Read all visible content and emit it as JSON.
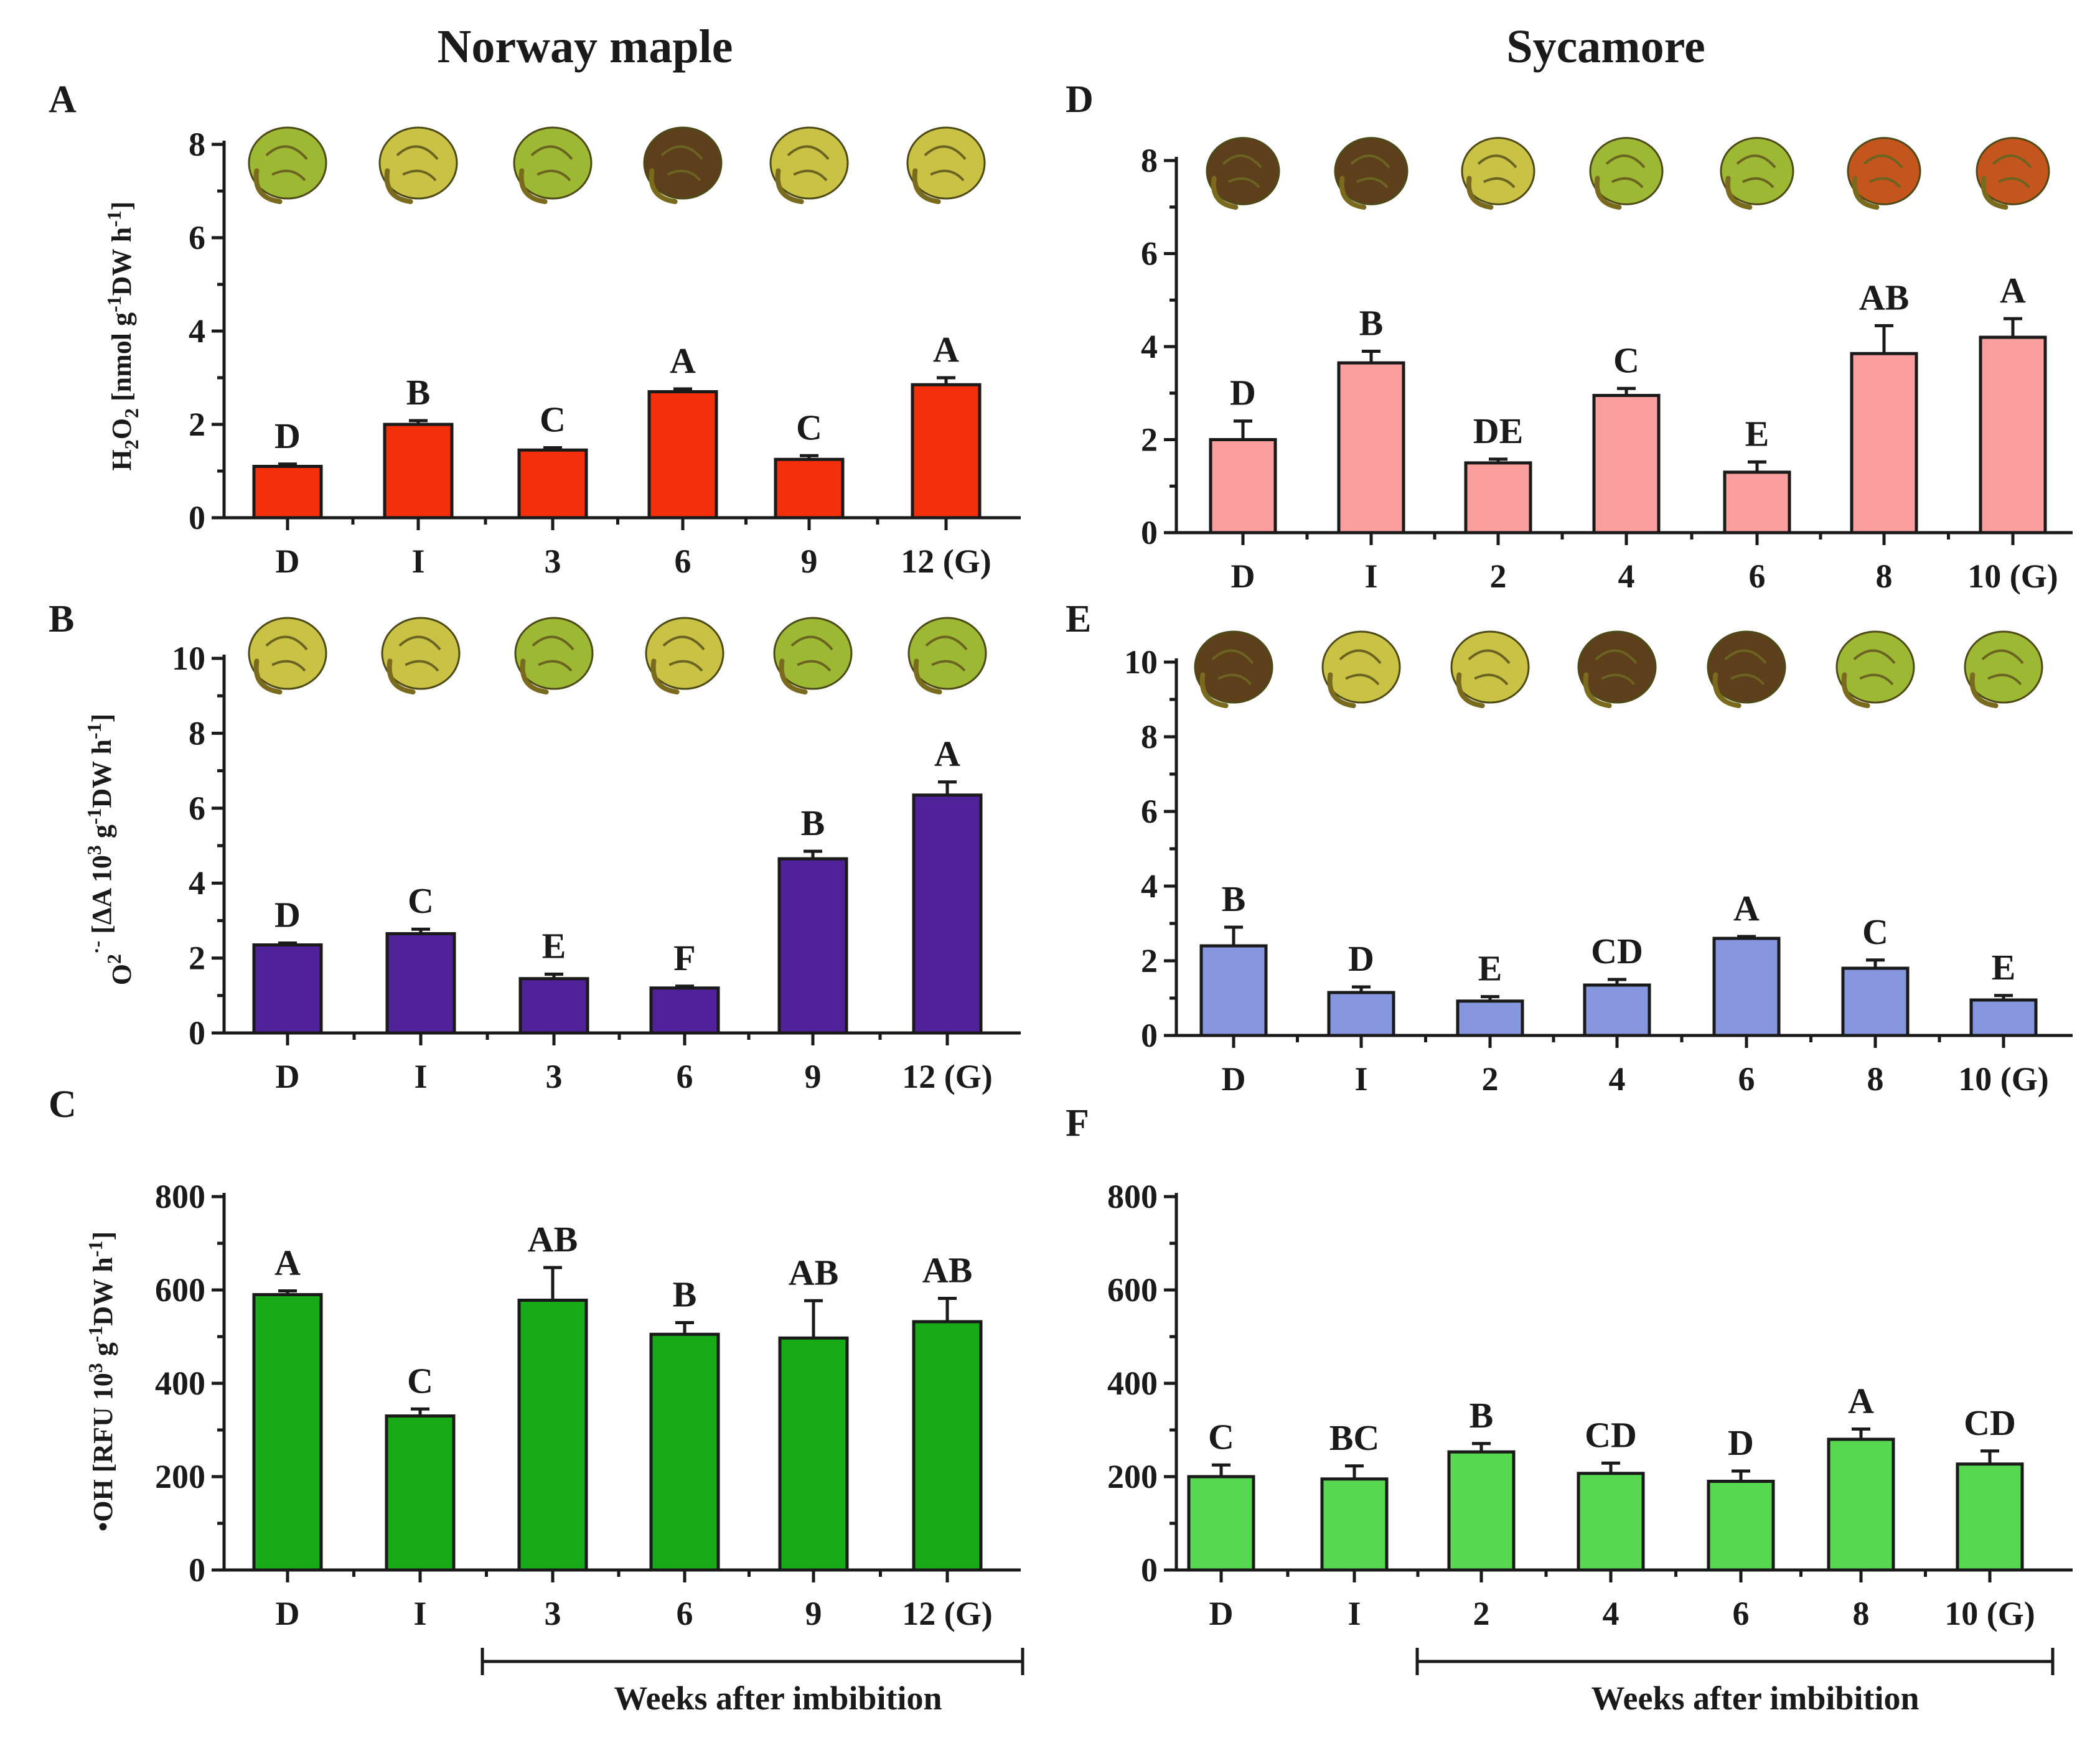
{
  "figure": {
    "species": [
      "Norway maple",
      "Sycamore"
    ],
    "x_axis_title": "Weeks after imbibition"
  },
  "colors": {
    "A": "#f4300c",
    "B": "#50229a",
    "C": "#17ab17",
    "D": "#fa9e9e",
    "E": "#8797df",
    "F": "#57d851",
    "seed_yellow": "#c9c244",
    "seed_green": "#9db833",
    "seed_brown": "#5e3f1c",
    "seed_red": "#c4551c"
  },
  "chart_data": [
    {
      "panel": "A",
      "species": "Norway maple",
      "type": "bar",
      "ylabel_parts": [
        "H",
        "2",
        "O",
        "2",
        " [nmol g",
        "-1",
        "DW h",
        "-1",
        "]"
      ],
      "categories": [
        "D",
        "I",
        "3",
        "6",
        "9",
        "12 (G)"
      ],
      "values": [
        1.1,
        2.0,
        1.45,
        2.7,
        1.25,
        2.85
      ],
      "errors": [
        0.05,
        0.08,
        0.05,
        0.06,
        0.08,
        0.15
      ],
      "labels": [
        "D",
        "B",
        "C",
        "A",
        "C",
        "A"
      ],
      "ylim": [
        0,
        8
      ],
      "yticks": [
        "0",
        "2",
        "4",
        "6",
        "8"
      ],
      "seeds": [
        "seed_green",
        "seed_yellow",
        "seed_green",
        "seed_brown",
        "seed_yellow",
        "seed_yellow"
      ]
    },
    {
      "panel": "B",
      "species": "Norway maple",
      "type": "bar",
      "ylabel_parts": [
        "O",
        "2",
        "·-",
        " [ΔA 10",
        "3",
        " g",
        "-1",
        "DW h",
        "-1",
        "]"
      ],
      "categories": [
        "D",
        "I",
        "3",
        "6",
        "9",
        "12 (G)"
      ],
      "values": [
        2.35,
        2.65,
        1.45,
        1.2,
        4.65,
        6.35
      ],
      "errors": [
        0.05,
        0.12,
        0.12,
        0.05,
        0.2,
        0.35
      ],
      "labels": [
        "D",
        "C",
        "E",
        "F",
        "B",
        "A"
      ],
      "ylim": [
        0,
        10
      ],
      "yticks": [
        "0",
        "2",
        "4",
        "6",
        "8",
        "10"
      ],
      "seeds": [
        "seed_yellow",
        "seed_yellow",
        "seed_green",
        "seed_yellow",
        "seed_green",
        "seed_green"
      ]
    },
    {
      "panel": "C",
      "species": "Norway maple",
      "type": "bar",
      "ylabel_parts": [
        "•OH [RFU 10",
        "3",
        " g",
        "-1",
        "DW h",
        "-1",
        "]"
      ],
      "categories": [
        "D",
        "I",
        "3",
        "6",
        "9",
        "12 (G)"
      ],
      "values": [
        590,
        330,
        578,
        505,
        497,
        532
      ],
      "errors": [
        8,
        15,
        70,
        25,
        80,
        50
      ],
      "labels": [
        "A",
        "C",
        "AB",
        "B",
        "AB",
        "AB"
      ],
      "ylim": [
        0,
        800
      ],
      "yticks": [
        "0",
        "200",
        "400",
        "600",
        "800"
      ],
      "seeds": []
    },
    {
      "panel": "D",
      "species": "Sycamore",
      "type": "bar",
      "ylabel_parts": [],
      "categories": [
        "D",
        "I",
        "2",
        "4",
        "6",
        "8",
        "10 (G)"
      ],
      "values": [
        2.0,
        3.65,
        1.5,
        2.95,
        1.3,
        3.85,
        4.2
      ],
      "errors": [
        0.4,
        0.25,
        0.08,
        0.15,
        0.22,
        0.6,
        0.4
      ],
      "labels": [
        "D",
        "B",
        "DE",
        "C",
        "E",
        "AB",
        "A"
      ],
      "ylim": [
        0,
        8
      ],
      "yticks": [
        "0",
        "2",
        "4",
        "6",
        "8"
      ],
      "seeds": [
        "seed_brown",
        "seed_brown",
        "seed_yellow",
        "seed_green",
        "seed_green",
        "seed_red",
        "seed_red"
      ]
    },
    {
      "panel": "E",
      "species": "Sycamore",
      "type": "bar",
      "ylabel_parts": [],
      "categories": [
        "D",
        "I",
        "2",
        "4",
        "6",
        "8",
        "10 (G)"
      ],
      "values": [
        2.4,
        1.15,
        0.92,
        1.35,
        2.6,
        1.8,
        0.95
      ],
      "errors": [
        0.5,
        0.15,
        0.12,
        0.15,
        0.05,
        0.22,
        0.12
      ],
      "labels": [
        "B",
        "D",
        "E",
        "CD",
        "A",
        "C",
        "E"
      ],
      "ylim": [
        0,
        10
      ],
      "yticks": [
        "0",
        "2",
        "4",
        "6",
        "8",
        "10"
      ],
      "seeds": [
        "seed_brown",
        "seed_yellow",
        "seed_yellow",
        "seed_brown",
        "seed_brown",
        "seed_green",
        "seed_green"
      ]
    },
    {
      "panel": "F",
      "species": "Sycamore",
      "type": "bar",
      "ylabel_parts": [],
      "categories": [
        "D",
        "I",
        "2",
        "4",
        "6",
        "8",
        "10 (G)"
      ],
      "values": [
        200,
        195,
        253,
        207,
        190,
        280,
        227
      ],
      "errors": [
        25,
        28,
        18,
        22,
        22,
        22,
        28
      ],
      "labels": [
        "C",
        "BC",
        "B",
        "CD",
        "D",
        "A",
        "CD"
      ],
      "ylim": [
        0,
        800
      ],
      "yticks": [
        "0",
        "200",
        "400",
        "600",
        "800"
      ],
      "seeds": []
    }
  ]
}
